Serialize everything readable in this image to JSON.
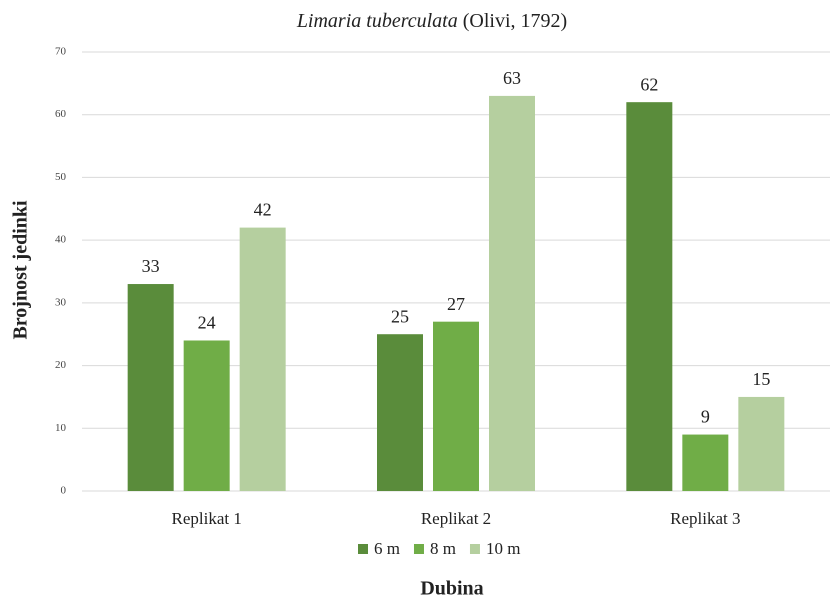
{
  "chart_data": {
    "type": "bar",
    "title": {
      "italic": "Limaria tuberculata",
      "plain": "(Olivi, 1792)"
    },
    "xlabel": "Dubina",
    "ylabel": "Brojnost jedinki",
    "categories": [
      "Replikat 1",
      "Replikat 2",
      "Replikat 3"
    ],
    "series": [
      {
        "name": "6 m",
        "color": "#5a8c3b",
        "values": [
          33,
          25,
          62
        ]
      },
      {
        "name": "8 m",
        "color": "#70ad47",
        "values": [
          24,
          27,
          9
        ]
      },
      {
        "name": "10 m",
        "color": "#b5cf9f",
        "values": [
          42,
          63,
          15
        ]
      }
    ],
    "ylim": [
      0,
      70
    ],
    "yticks": [
      0,
      10,
      20,
      30,
      40,
      50,
      60,
      70
    ],
    "grid": true,
    "legend": "bottom"
  }
}
